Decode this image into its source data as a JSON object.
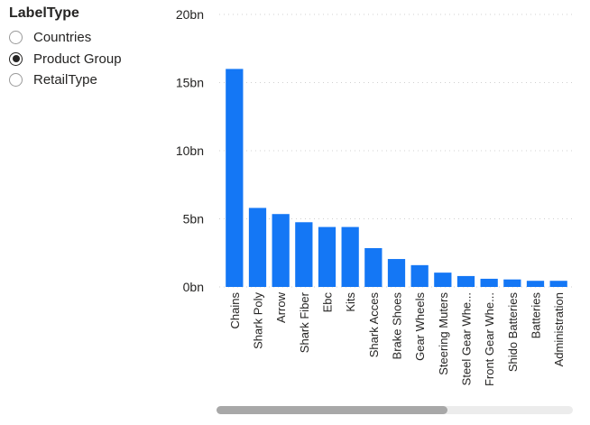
{
  "slicer": {
    "title": "LabelType",
    "options": [
      {
        "label": "Countries",
        "selected": false
      },
      {
        "label": "Product Group",
        "selected": true
      },
      {
        "label": "RetailType",
        "selected": false
      }
    ]
  },
  "colors": {
    "bar": "#1477f5",
    "grid": "#d0d0d0",
    "text": "#252423"
  },
  "chart_data": {
    "type": "bar",
    "categories": [
      "Chains",
      "Shark Poly",
      "Arrow",
      "Shark Fiber",
      "Ebc",
      "Kits",
      "Shark Acces",
      "Brake Shoes",
      "Gear Wheels",
      "Steering Muters",
      "Steel Gear Whe...",
      "Front Gear Whe...",
      "Shido Batteries",
      "Batteries",
      "Administration"
    ],
    "values": [
      16.0,
      5.8,
      5.35,
      4.75,
      4.4,
      4.4,
      2.85,
      2.05,
      1.6,
      1.05,
      0.8,
      0.6,
      0.55,
      0.45,
      0.45
    ],
    "yticks": [
      "0bn",
      "5bn",
      "10bn",
      "15bn",
      "20bn"
    ],
    "ylim": [
      0,
      20
    ],
    "grid": true,
    "title": "",
    "xlabel": "",
    "ylabel": ""
  }
}
